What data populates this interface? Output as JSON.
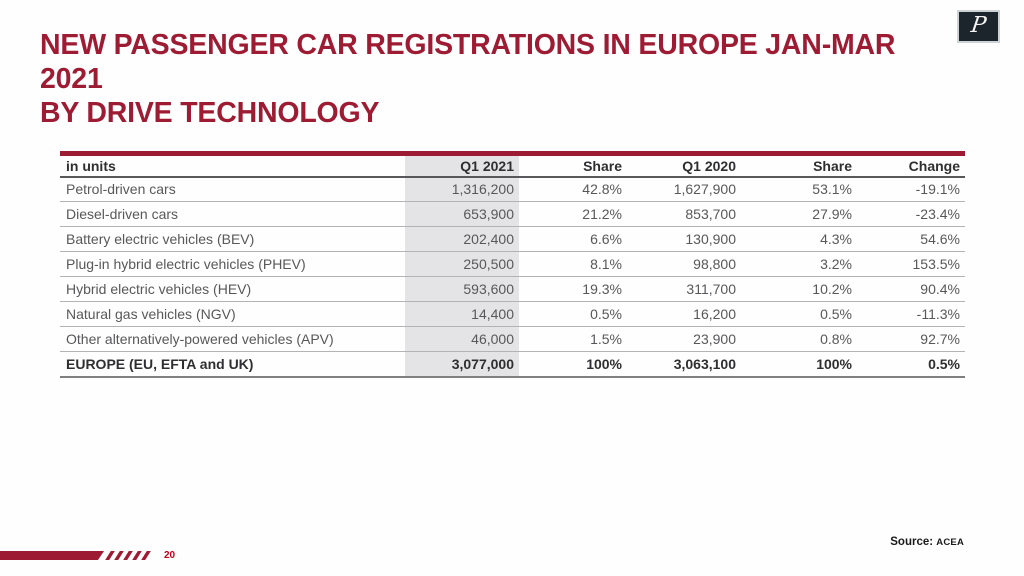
{
  "header": {
    "title_line1": "NEW PASSENGER CAR REGISTRATIONS IN EUROPE JAN-MAR 2021",
    "title_line2": "BY DRIVE TECHNOLOGY"
  },
  "logo": {
    "letter": "P"
  },
  "colors": {
    "accent_red": "#9e1c33",
    "column_highlight": "#e4e4e6",
    "body_text": "#58585a",
    "strong_text": "#2f2f31"
  },
  "table": {
    "columns": [
      "in units",
      "Q1 2021",
      "Share",
      "Q1 2020",
      "Share",
      "Change"
    ],
    "rows": [
      {
        "label": "Petrol-driven cars",
        "q1_2021": "1,316,200",
        "share_2021": "42.8%",
        "q1_2020": "1,627,900",
        "share_2020": "53.1%",
        "change": "-19.1%",
        "bold": false
      },
      {
        "label": "Diesel-driven cars",
        "q1_2021": "653,900",
        "share_2021": "21.2%",
        "q1_2020": "853,700",
        "share_2020": "27.9%",
        "change": "-23.4%",
        "bold": false
      },
      {
        "label": "Battery electric vehicles (BEV)",
        "q1_2021": "202,400",
        "share_2021": "6.6%",
        "q1_2020": "130,900",
        "share_2020": "4.3%",
        "change": "54.6%",
        "bold": false
      },
      {
        "label": "Plug-in hybrid electric vehicles (PHEV)",
        "q1_2021": "250,500",
        "share_2021": "8.1%",
        "q1_2020": "98,800",
        "share_2020": "3.2%",
        "change": "153.5%",
        "bold": false
      },
      {
        "label": "Hybrid electric vehicles (HEV)",
        "q1_2021": "593,600",
        "share_2021": "19.3%",
        "q1_2020": "311,700",
        "share_2020": "10.2%",
        "change": "90.4%",
        "bold": false
      },
      {
        "label": "Natural gas vehicles (NGV)",
        "q1_2021": "14,400",
        "share_2021": "0.5%",
        "q1_2020": "16,200",
        "share_2020": "0.5%",
        "change": "-11.3%",
        "bold": false
      },
      {
        "label": "Other alternatively-powered vehicles (APV)",
        "q1_2021": "46,000",
        "share_2021": "1.5%",
        "q1_2020": "23,900",
        "share_2020": "0.8%",
        "change": "92.7%",
        "bold": false
      },
      {
        "label": "EUROPE (EU, EFTA and UK)",
        "q1_2021": "3,077,000",
        "share_2021": "100%",
        "q1_2020": "3,063,100",
        "share_2020": "100%",
        "change": "0.5%",
        "bold": true
      }
    ]
  },
  "chart_data": {
    "type": "table",
    "title": "New passenger car registrations in Europe Jan-Mar 2021 by drive technology",
    "categories": [
      "Petrol-driven cars",
      "Diesel-driven cars",
      "Battery electric vehicles (BEV)",
      "Plug-in hybrid electric vehicles (PHEV)",
      "Hybrid electric vehicles (HEV)",
      "Natural gas vehicles (NGV)",
      "Other alternatively-powered vehicles (APV)",
      "EUROPE (EU, EFTA and UK)"
    ],
    "series": [
      {
        "name": "Q1 2021 units",
        "values": [
          1316200,
          653900,
          202400,
          250500,
          593600,
          14400,
          46000,
          3077000
        ]
      },
      {
        "name": "Share 2021 %",
        "values": [
          42.8,
          21.2,
          6.6,
          8.1,
          19.3,
          0.5,
          1.5,
          100
        ]
      },
      {
        "name": "Q1 2020 units",
        "values": [
          1627900,
          853700,
          130900,
          98800,
          311700,
          16200,
          23900,
          3063100
        ]
      },
      {
        "name": "Share 2020 %",
        "values": [
          53.1,
          27.9,
          4.3,
          3.2,
          10.2,
          0.5,
          0.8,
          100
        ]
      },
      {
        "name": "Change %",
        "values": [
          -19.1,
          -23.4,
          54.6,
          153.5,
          90.4,
          -11.3,
          92.7,
          0.5
        ]
      }
    ]
  },
  "footer": {
    "page_number": "20",
    "source_label": "Source:",
    "source_value": "ACEA"
  }
}
